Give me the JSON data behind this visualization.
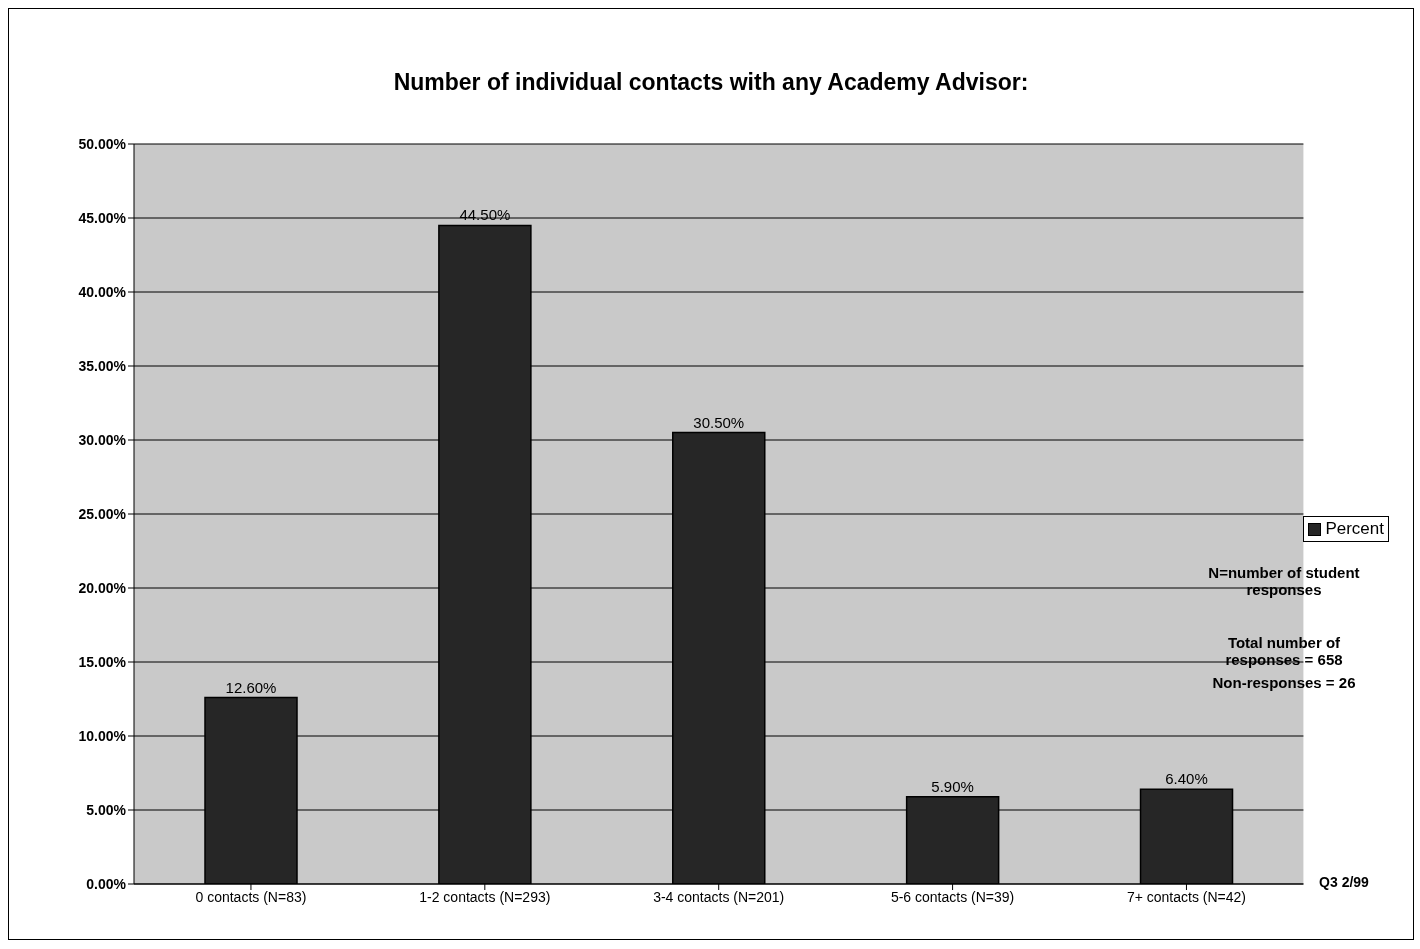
{
  "chart_data": {
    "type": "bar",
    "title": "Number of individual contacts with any Academy Advisor:",
    "categories": [
      "0 contacts (N=83)",
      "1-2 contacts (N=293)",
      "3-4 contacts (N=201)",
      "5-6 contacts (N=39)",
      "7+ contacts (N=42)"
    ],
    "series": [
      {
        "name": "Percent",
        "color": "#262626",
        "values": [
          12.6,
          44.5,
          30.5,
          5.9,
          6.4
        ],
        "value_labels": [
          "12.60%",
          "44.50%",
          "30.50%",
          "5.90%",
          "6.40%"
        ]
      }
    ],
    "ylim": [
      0,
      50
    ],
    "yticks": [
      {
        "value": 0,
        "label": "0.00%"
      },
      {
        "value": 5,
        "label": "5.00%"
      },
      {
        "value": 10,
        "label": "10.00%"
      },
      {
        "value": 15,
        "label": "15.00%"
      },
      {
        "value": 20,
        "label": "20.00%"
      },
      {
        "value": 25,
        "label": "25.00%"
      },
      {
        "value": 30,
        "label": "30.00%"
      },
      {
        "value": 35,
        "label": "35.00%"
      },
      {
        "value": 40,
        "label": "40.00%"
      },
      {
        "value": 45,
        "label": "45.00%"
      },
      {
        "value": 50,
        "label": "50.00%"
      }
    ],
    "grid": "y",
    "legend": "right",
    "annotations": [
      "N=number of student responses",
      "Total number of responses = 658",
      "Non-responses = 26",
      "Q3 2/99"
    ]
  }
}
